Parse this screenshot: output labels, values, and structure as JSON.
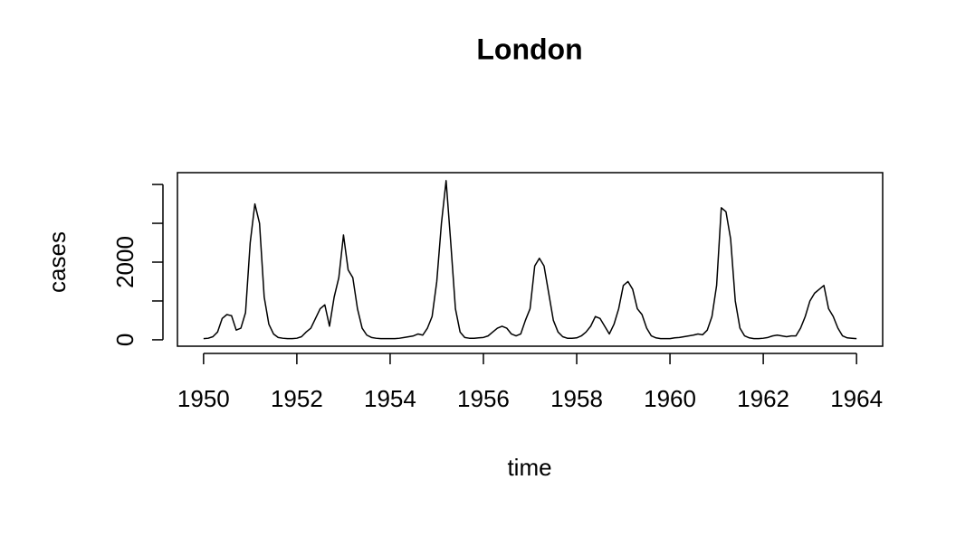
{
  "chart_data": {
    "type": "line",
    "title": "London",
    "x_label": "time",
    "y_label": "cases",
    "x": [
      1950.0,
      1950.1,
      1950.2,
      1950.3,
      1950.4,
      1950.5,
      1950.6,
      1950.7,
      1950.8,
      1950.9,
      1951.0,
      1951.1,
      1951.2,
      1951.3,
      1951.4,
      1951.5,
      1951.6,
      1951.7,
      1951.8,
      1951.9,
      1952.0,
      1952.1,
      1952.2,
      1952.3,
      1952.4,
      1952.5,
      1952.6,
      1952.7,
      1952.8,
      1952.9,
      1953.0,
      1953.1,
      1953.2,
      1953.3,
      1953.4,
      1953.5,
      1953.6,
      1953.7,
      1953.8,
      1953.9,
      1954.0,
      1954.1,
      1954.2,
      1954.3,
      1954.4,
      1954.5,
      1954.6,
      1954.7,
      1954.8,
      1954.9,
      1955.0,
      1955.1,
      1955.2,
      1955.3,
      1955.4,
      1955.5,
      1955.6,
      1955.7,
      1955.8,
      1955.9,
      1956.0,
      1956.1,
      1956.2,
      1956.3,
      1956.4,
      1956.5,
      1956.6,
      1956.7,
      1956.8,
      1956.9,
      1957.0,
      1957.1,
      1957.2,
      1957.3,
      1957.4,
      1957.5,
      1957.6,
      1957.7,
      1957.8,
      1957.9,
      1958.0,
      1958.1,
      1958.2,
      1958.3,
      1958.4,
      1958.5,
      1958.6,
      1958.7,
      1958.8,
      1958.9,
      1959.0,
      1959.1,
      1959.2,
      1959.3,
      1959.4,
      1959.5,
      1959.6,
      1959.7,
      1959.8,
      1959.9,
      1960.0,
      1960.1,
      1960.2,
      1960.3,
      1960.4,
      1960.5,
      1960.6,
      1960.7,
      1960.8,
      1960.9,
      1961.0,
      1961.1,
      1961.2,
      1961.3,
      1961.4,
      1961.5,
      1961.6,
      1961.7,
      1961.8,
      1961.9,
      1962.0,
      1962.1,
      1962.2,
      1962.3,
      1962.4,
      1962.5,
      1962.6,
      1962.7,
      1962.8,
      1962.9,
      1963.0,
      1963.1,
      1963.2,
      1963.3,
      1963.4,
      1963.5,
      1963.6,
      1963.7,
      1963.8,
      1963.9,
      1964.0
    ],
    "series": [
      {
        "name": "cases",
        "color": "#000000",
        "values": [
          30,
          40,
          80,
          200,
          550,
          650,
          620,
          250,
          300,
          700,
          2500,
          3500,
          3000,
          1100,
          400,
          150,
          60,
          40,
          30,
          30,
          40,
          80,
          200,
          300,
          550,
          800,
          900,
          350,
          1100,
          1600,
          2700,
          1800,
          1600,
          800,
          300,
          120,
          60,
          40,
          30,
          30,
          30,
          30,
          40,
          60,
          80,
          100,
          150,
          120,
          300,
          600,
          1500,
          3000,
          4100,
          2500,
          800,
          200,
          60,
          40,
          40,
          50,
          60,
          100,
          200,
          300,
          350,
          300,
          150,
          100,
          150,
          500,
          800,
          1900,
          2100,
          1900,
          1200,
          500,
          200,
          80,
          40,
          40,
          50,
          100,
          200,
          350,
          600,
          550,
          350,
          150,
          400,
          800,
          1400,
          1500,
          1300,
          800,
          650,
          300,
          100,
          50,
          30,
          30,
          30,
          50,
          60,
          80,
          100,
          120,
          150,
          130,
          250,
          600,
          1400,
          3400,
          3300,
          2600,
          1000,
          300,
          100,
          50,
          30,
          30,
          40,
          60,
          100,
          120,
          100,
          80,
          100,
          100,
          300,
          600,
          1000,
          1200,
          1300,
          1400,
          800,
          600,
          300,
          100,
          50,
          40,
          30
        ]
      }
    ],
    "xlim": [
      1949.44,
      1964.56
    ],
    "xticks": [
      1950,
      1952,
      1954,
      1956,
      1958,
      1960,
      1962,
      1964
    ],
    "ylim": [
      -165,
      4305
    ],
    "yticks": [
      0,
      2000
    ],
    "yticks_unlabeled": [
      1000,
      3000,
      4000
    ],
    "grid": false
  }
}
